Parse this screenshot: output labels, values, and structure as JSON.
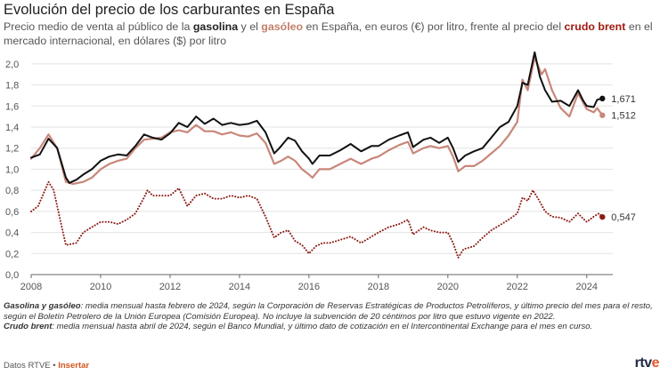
{
  "title": "Evolución del precio de los carburantes en España",
  "subtitle": {
    "part1": "Precio medio de venta al público de la ",
    "gasoline": "gasolina",
    "part2": " y el ",
    "diesel": "gasóleo",
    "part3": " en España, en euros (€) por litro, frente al precio del ",
    "brent": "crudo brent",
    "part4": " en el mercado internacional, en dólares ($) por litro"
  },
  "notes": {
    "gas_label": "Gasolina y gasóleo",
    "gas_text": ": media mensual hasta febrero de 2024, según la Corporación de Reservas Estratégicas de Productos Petrolíferos, y último precio del mes para el resto, según el Boletín Petrolero de la Unión Europea (Comisión Europea). No incluye la subvención de 20 céntimos por litro que estuvo vigente en 2022.",
    "brent_label": "Crudo brent",
    "brent_text": ": media mensual hasta abril de 2024, según el Banco Mundial, y último dato de cotización en el Intercontinental Exchange para el mes en curso."
  },
  "footer": {
    "source": "Datos RTVE",
    "separator": " • ",
    "insert": "Insertar"
  },
  "logo": {
    "prefix": "rtv",
    "accent": "e"
  },
  "colors": {
    "gasoline": "#111111",
    "diesel": "#c9877a",
    "brent": "#8b1a12",
    "grid": "#e3e3e3"
  },
  "chart_data": {
    "type": "line",
    "title": "Evolución del precio de los carburantes en España",
    "xlabel": "",
    "ylabel": "",
    "xlim": [
      2008,
      2024.75
    ],
    "ylim": [
      0,
      2.1
    ],
    "x_ticks": [
      2008,
      2010,
      2012,
      2014,
      2016,
      2018,
      2020,
      2022,
      2024
    ],
    "y_ticks": [
      0.0,
      0.2,
      0.4,
      0.6,
      0.8,
      1.0,
      1.2,
      1.4,
      1.6,
      1.8,
      2.0
    ],
    "y_tick_labels": [
      "0,0",
      "0,2",
      "0,4",
      "0,6",
      "0,8",
      "1,0",
      "1,2",
      "1,4",
      "1,6",
      "1,8",
      "2,0"
    ],
    "grid": true,
    "series": [
      {
        "name": "Gasolina",
        "color": "#111111",
        "style": "solid",
        "end_label": "1,671",
        "points": [
          [
            2008.0,
            1.11
          ],
          [
            2008.25,
            1.14
          ],
          [
            2008.5,
            1.29
          ],
          [
            2008.75,
            1.2
          ],
          [
            2009.0,
            0.92
          ],
          [
            2009.1,
            0.87
          ],
          [
            2009.3,
            0.9
          ],
          [
            2009.5,
            0.95
          ],
          [
            2009.75,
            1.0
          ],
          [
            2010.0,
            1.08
          ],
          [
            2010.25,
            1.12
          ],
          [
            2010.5,
            1.14
          ],
          [
            2010.75,
            1.13
          ],
          [
            2011.0,
            1.22
          ],
          [
            2011.25,
            1.33
          ],
          [
            2011.5,
            1.3
          ],
          [
            2011.75,
            1.28
          ],
          [
            2012.0,
            1.34
          ],
          [
            2012.25,
            1.44
          ],
          [
            2012.5,
            1.4
          ],
          [
            2012.75,
            1.5
          ],
          [
            2013.0,
            1.43
          ],
          [
            2013.25,
            1.48
          ],
          [
            2013.5,
            1.42
          ],
          [
            2013.75,
            1.44
          ],
          [
            2014.0,
            1.42
          ],
          [
            2014.25,
            1.43
          ],
          [
            2014.5,
            1.46
          ],
          [
            2014.75,
            1.35
          ],
          [
            2015.0,
            1.15
          ],
          [
            2015.15,
            1.2
          ],
          [
            2015.4,
            1.3
          ],
          [
            2015.6,
            1.27
          ],
          [
            2015.8,
            1.17
          ],
          [
            2016.0,
            1.1
          ],
          [
            2016.1,
            1.05
          ],
          [
            2016.3,
            1.13
          ],
          [
            2016.6,
            1.13
          ],
          [
            2016.9,
            1.18
          ],
          [
            2017.2,
            1.24
          ],
          [
            2017.5,
            1.17
          ],
          [
            2017.8,
            1.22
          ],
          [
            2018.0,
            1.22
          ],
          [
            2018.3,
            1.28
          ],
          [
            2018.6,
            1.32
          ],
          [
            2018.85,
            1.35
          ],
          [
            2019.0,
            1.21
          ],
          [
            2019.3,
            1.28
          ],
          [
            2019.5,
            1.3
          ],
          [
            2019.75,
            1.25
          ],
          [
            2020.0,
            1.3
          ],
          [
            2020.15,
            1.2
          ],
          [
            2020.3,
            1.07
          ],
          [
            2020.5,
            1.13
          ],
          [
            2020.75,
            1.17
          ],
          [
            2021.0,
            1.2
          ],
          [
            2021.25,
            1.3
          ],
          [
            2021.5,
            1.4
          ],
          [
            2021.75,
            1.45
          ],
          [
            2022.0,
            1.6
          ],
          [
            2022.15,
            1.82
          ],
          [
            2022.3,
            1.8
          ],
          [
            2022.5,
            2.11
          ],
          [
            2022.65,
            1.88
          ],
          [
            2022.8,
            1.75
          ],
          [
            2023.0,
            1.64
          ],
          [
            2023.25,
            1.65
          ],
          [
            2023.5,
            1.6
          ],
          [
            2023.75,
            1.75
          ],
          [
            2023.9,
            1.65
          ],
          [
            2024.0,
            1.6
          ],
          [
            2024.2,
            1.59
          ],
          [
            2024.3,
            1.66
          ],
          [
            2024.45,
            1.671
          ]
        ]
      },
      {
        "name": "Gasóleo",
        "color": "#c9877a",
        "style": "solid",
        "end_label": "1,512",
        "points": [
          [
            2008.0,
            1.1
          ],
          [
            2008.25,
            1.2
          ],
          [
            2008.5,
            1.33
          ],
          [
            2008.75,
            1.2
          ],
          [
            2009.0,
            0.88
          ],
          [
            2009.2,
            0.86
          ],
          [
            2009.5,
            0.88
          ],
          [
            2009.75,
            0.92
          ],
          [
            2010.0,
            1.0
          ],
          [
            2010.25,
            1.05
          ],
          [
            2010.5,
            1.08
          ],
          [
            2010.75,
            1.1
          ],
          [
            2011.0,
            1.2
          ],
          [
            2011.25,
            1.28
          ],
          [
            2011.5,
            1.29
          ],
          [
            2011.75,
            1.3
          ],
          [
            2012.0,
            1.35
          ],
          [
            2012.25,
            1.37
          ],
          [
            2012.5,
            1.35
          ],
          [
            2012.75,
            1.42
          ],
          [
            2013.0,
            1.36
          ],
          [
            2013.25,
            1.36
          ],
          [
            2013.5,
            1.33
          ],
          [
            2013.75,
            1.35
          ],
          [
            2014.0,
            1.32
          ],
          [
            2014.25,
            1.31
          ],
          [
            2014.5,
            1.34
          ],
          [
            2014.75,
            1.25
          ],
          [
            2015.0,
            1.05
          ],
          [
            2015.2,
            1.08
          ],
          [
            2015.4,
            1.12
          ],
          [
            2015.6,
            1.08
          ],
          [
            2015.8,
            1.0
          ],
          [
            2016.0,
            0.95
          ],
          [
            2016.1,
            0.92
          ],
          [
            2016.3,
            1.0
          ],
          [
            2016.6,
            1.0
          ],
          [
            2016.9,
            1.05
          ],
          [
            2017.2,
            1.1
          ],
          [
            2017.5,
            1.05
          ],
          [
            2017.8,
            1.1
          ],
          [
            2018.0,
            1.12
          ],
          [
            2018.3,
            1.18
          ],
          [
            2018.6,
            1.23
          ],
          [
            2018.85,
            1.26
          ],
          [
            2019.0,
            1.15
          ],
          [
            2019.3,
            1.2
          ],
          [
            2019.5,
            1.22
          ],
          [
            2019.75,
            1.2
          ],
          [
            2020.0,
            1.22
          ],
          [
            2020.15,
            1.12
          ],
          [
            2020.3,
            0.98
          ],
          [
            2020.5,
            1.03
          ],
          [
            2020.75,
            1.03
          ],
          [
            2021.0,
            1.08
          ],
          [
            2021.25,
            1.15
          ],
          [
            2021.5,
            1.22
          ],
          [
            2021.75,
            1.32
          ],
          [
            2022.0,
            1.45
          ],
          [
            2022.15,
            1.85
          ],
          [
            2022.3,
            1.75
          ],
          [
            2022.5,
            2.06
          ],
          [
            2022.7,
            1.9
          ],
          [
            2022.8,
            1.95
          ],
          [
            2023.0,
            1.75
          ],
          [
            2023.25,
            1.58
          ],
          [
            2023.5,
            1.5
          ],
          [
            2023.75,
            1.72
          ],
          [
            2023.9,
            1.63
          ],
          [
            2024.0,
            1.57
          ],
          [
            2024.2,
            1.54
          ],
          [
            2024.3,
            1.58
          ],
          [
            2024.45,
            1.512
          ]
        ]
      },
      {
        "name": "Crudo brent",
        "color": "#8b1a12",
        "style": "dotted",
        "end_label": "0,547",
        "points": [
          [
            2008.0,
            0.6
          ],
          [
            2008.2,
            0.65
          ],
          [
            2008.5,
            0.88
          ],
          [
            2008.65,
            0.8
          ],
          [
            2008.85,
            0.5
          ],
          [
            2009.0,
            0.28
          ],
          [
            2009.3,
            0.3
          ],
          [
            2009.5,
            0.4
          ],
          [
            2009.75,
            0.45
          ],
          [
            2010.0,
            0.5
          ],
          [
            2010.25,
            0.5
          ],
          [
            2010.5,
            0.48
          ],
          [
            2010.75,
            0.52
          ],
          [
            2011.0,
            0.58
          ],
          [
            2011.25,
            0.73
          ],
          [
            2011.35,
            0.8
          ],
          [
            2011.5,
            0.75
          ],
          [
            2011.75,
            0.75
          ],
          [
            2012.0,
            0.75
          ],
          [
            2012.25,
            0.82
          ],
          [
            2012.5,
            0.65
          ],
          [
            2012.75,
            0.75
          ],
          [
            2013.0,
            0.77
          ],
          [
            2013.25,
            0.72
          ],
          [
            2013.5,
            0.72
          ],
          [
            2013.75,
            0.75
          ],
          [
            2014.0,
            0.73
          ],
          [
            2014.25,
            0.75
          ],
          [
            2014.5,
            0.72
          ],
          [
            2014.75,
            0.55
          ],
          [
            2015.0,
            0.35
          ],
          [
            2015.2,
            0.4
          ],
          [
            2015.4,
            0.42
          ],
          [
            2015.6,
            0.32
          ],
          [
            2015.8,
            0.28
          ],
          [
            2016.0,
            0.2
          ],
          [
            2016.2,
            0.27
          ],
          [
            2016.4,
            0.3
          ],
          [
            2016.6,
            0.3
          ],
          [
            2016.9,
            0.33
          ],
          [
            2017.2,
            0.36
          ],
          [
            2017.5,
            0.3
          ],
          [
            2017.8,
            0.36
          ],
          [
            2018.0,
            0.4
          ],
          [
            2018.3,
            0.45
          ],
          [
            2018.6,
            0.48
          ],
          [
            2018.85,
            0.52
          ],
          [
            2019.0,
            0.38
          ],
          [
            2019.3,
            0.45
          ],
          [
            2019.5,
            0.42
          ],
          [
            2019.75,
            0.4
          ],
          [
            2020.0,
            0.4
          ],
          [
            2020.15,
            0.3
          ],
          [
            2020.3,
            0.16
          ],
          [
            2020.45,
            0.24
          ],
          [
            2020.75,
            0.27
          ],
          [
            2021.0,
            0.35
          ],
          [
            2021.25,
            0.42
          ],
          [
            2021.5,
            0.47
          ],
          [
            2021.75,
            0.52
          ],
          [
            2022.0,
            0.58
          ],
          [
            2022.15,
            0.73
          ],
          [
            2022.3,
            0.7
          ],
          [
            2022.45,
            0.8
          ],
          [
            2022.6,
            0.72
          ],
          [
            2022.8,
            0.6
          ],
          [
            2023.0,
            0.55
          ],
          [
            2023.25,
            0.54
          ],
          [
            2023.5,
            0.5
          ],
          [
            2023.75,
            0.58
          ],
          [
            2023.9,
            0.53
          ],
          [
            2024.0,
            0.5
          ],
          [
            2024.2,
            0.55
          ],
          [
            2024.35,
            0.58
          ],
          [
            2024.45,
            0.547
          ]
        ]
      }
    ]
  }
}
